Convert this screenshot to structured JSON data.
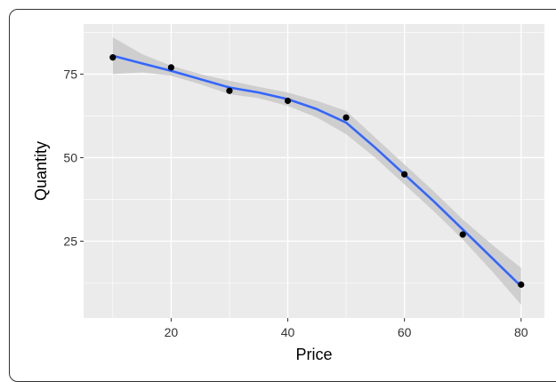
{
  "chart_data": {
    "type": "scatter",
    "title": "",
    "xlabel": "Price",
    "ylabel": "Quantity",
    "xlim": [
      5,
      84
    ],
    "ylim": [
      2,
      90
    ],
    "x_ticks": [
      20,
      40,
      60,
      80
    ],
    "y_ticks": [
      25,
      50,
      75
    ],
    "x_minor": [
      10,
      30,
      50,
      70
    ],
    "y_minor": [
      12.5,
      37.5,
      62.5,
      87.5
    ],
    "grid": true,
    "legend": "none",
    "colors": {
      "panel": "#EBEBEB",
      "grid": "#FFFFFF",
      "point": "#000000",
      "smooth_line": "#3366FF",
      "ribbon": "#C4C4C4"
    },
    "points": [
      {
        "x": 10,
        "y": 80
      },
      {
        "x": 20,
        "y": 77
      },
      {
        "x": 30,
        "y": 70
      },
      {
        "x": 40,
        "y": 67
      },
      {
        "x": 50,
        "y": 62
      },
      {
        "x": 60,
        "y": 45
      },
      {
        "x": 70,
        "y": 27
      },
      {
        "x": 80,
        "y": 12
      }
    ],
    "smooth": {
      "x": [
        10,
        15,
        20,
        25,
        30,
        35,
        40,
        45,
        50,
        55,
        60,
        65,
        70,
        75,
        80
      ],
      "y": [
        80.5,
        78.2,
        76.0,
        73.5,
        71.0,
        69.5,
        67.5,
        64.5,
        60.5,
        53.0,
        45.0,
        37.0,
        28.5,
        20.0,
        11.5
      ],
      "ymin": [
        75.0,
        75.5,
        74.5,
        72.0,
        69.0,
        67.8,
        65.5,
        62.0,
        57.0,
        50.0,
        42.0,
        34.0,
        25.5,
        16.0,
        6.0
      ],
      "ymax": [
        86.0,
        81.0,
        77.5,
        75.0,
        73.0,
        71.2,
        69.5,
        67.0,
        64.0,
        56.0,
        48.0,
        40.0,
        31.5,
        24.0,
        17.0
      ]
    }
  }
}
